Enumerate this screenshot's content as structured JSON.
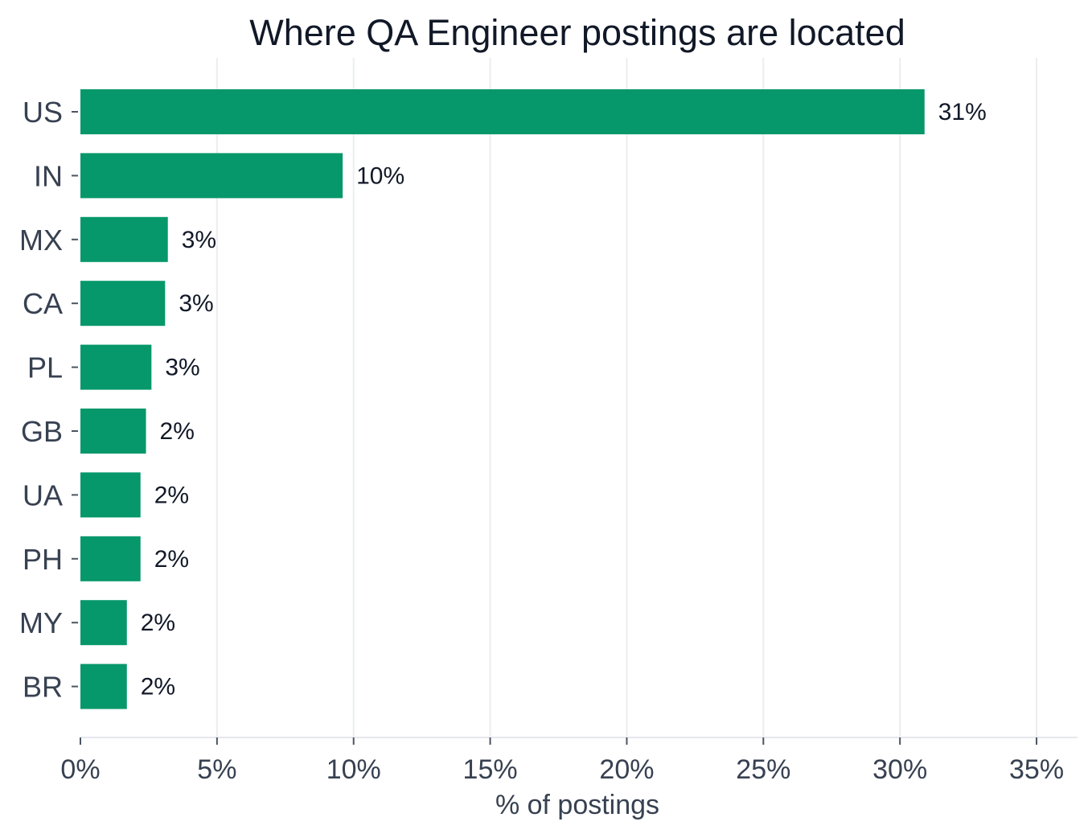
{
  "chart_data": {
    "type": "bar",
    "orientation": "horizontal",
    "title": "Where QA Engineer postings are located",
    "xlabel": "% of postings",
    "ylabel": "",
    "categories": [
      "US",
      "IN",
      "MX",
      "CA",
      "PL",
      "GB",
      "UA",
      "PH",
      "MY",
      "BR"
    ],
    "values": [
      30.9,
      9.6,
      3.2,
      3.1,
      2.6,
      2.4,
      2.2,
      2.2,
      1.7,
      1.7
    ],
    "data_labels": [
      "31%",
      "10%",
      "3%",
      "3%",
      "3%",
      "2%",
      "2%",
      "2%",
      "2%",
      "2%"
    ],
    "xlim": [
      0,
      36.5
    ],
    "xticks": [
      0,
      5,
      10,
      15,
      20,
      25,
      30,
      35
    ],
    "xtick_labels": [
      "0%",
      "5%",
      "10%",
      "15%",
      "20%",
      "25%",
      "30%",
      "35%"
    ],
    "grid": "vertical",
    "legend": "none",
    "colors": {
      "bar": "#06976a",
      "grid": "#ebedf0",
      "axis": "#e5e7eb",
      "title": "#111827",
      "text": "#374151"
    }
  }
}
